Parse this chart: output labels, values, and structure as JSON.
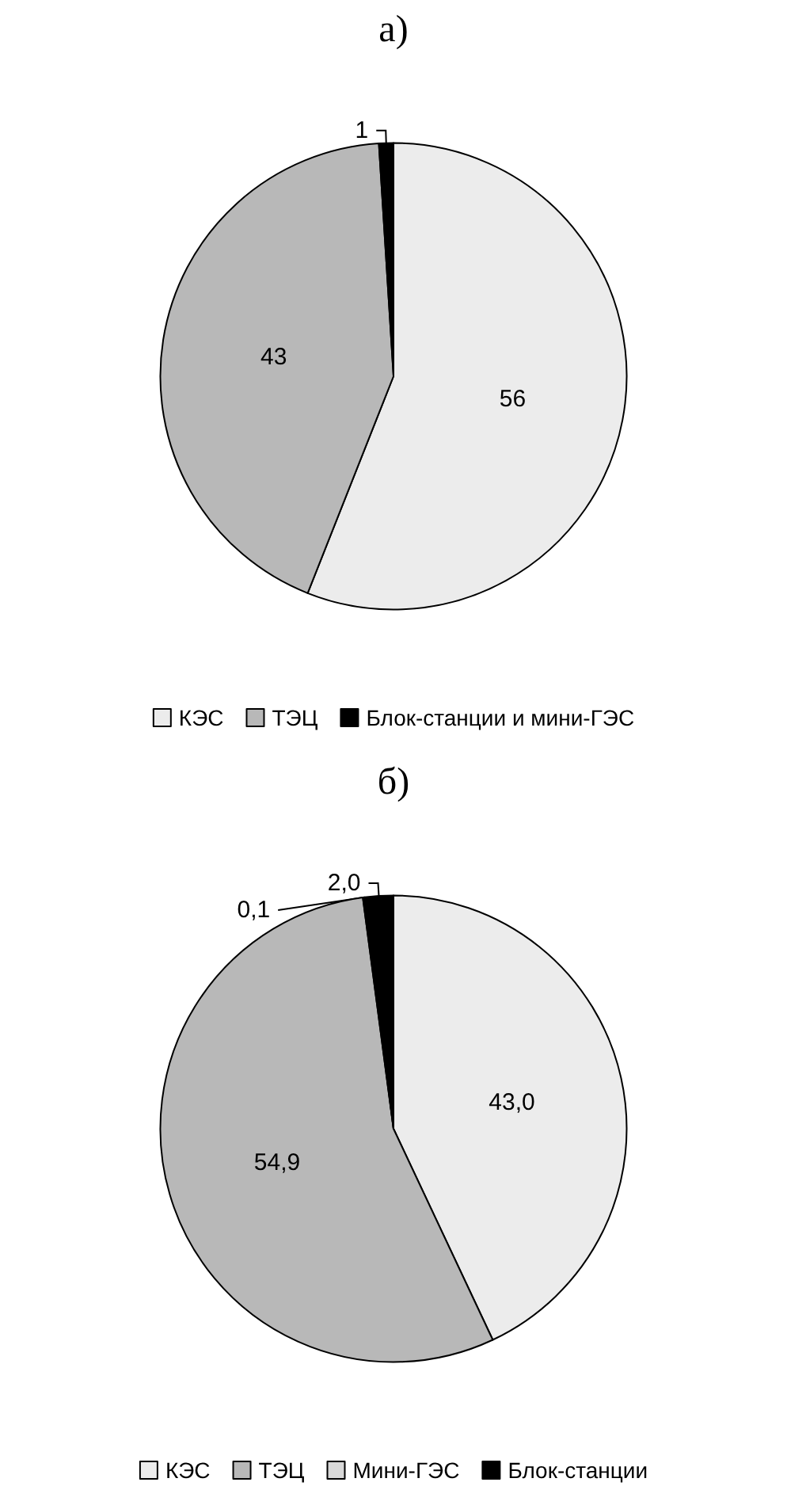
{
  "chart_data": [
    {
      "type": "pie",
      "title": "а)",
      "categories": [
        "КЭС",
        "ТЭЦ",
        "Блок-станции и мини-ГЭС"
      ],
      "values": [
        56,
        43,
        1
      ],
      "colors": [
        "#ececec",
        "#b8b8b8",
        "#000000"
      ],
      "data_labels": true,
      "legend": "bottom"
    },
    {
      "type": "pie",
      "title": "б)",
      "categories": [
        "КЭС",
        "ТЭЦ",
        "Мини-ГЭС",
        "Блок-станции"
      ],
      "values": [
        43.0,
        54.9,
        0.1,
        2.0
      ],
      "value_labels": [
        "43,0",
        "54,9",
        "0,1",
        "2,0"
      ],
      "colors": [
        "#ececec",
        "#b8b8b8",
        "#d8d8d8",
        "#000000"
      ],
      "legend": "bottom"
    }
  ]
}
